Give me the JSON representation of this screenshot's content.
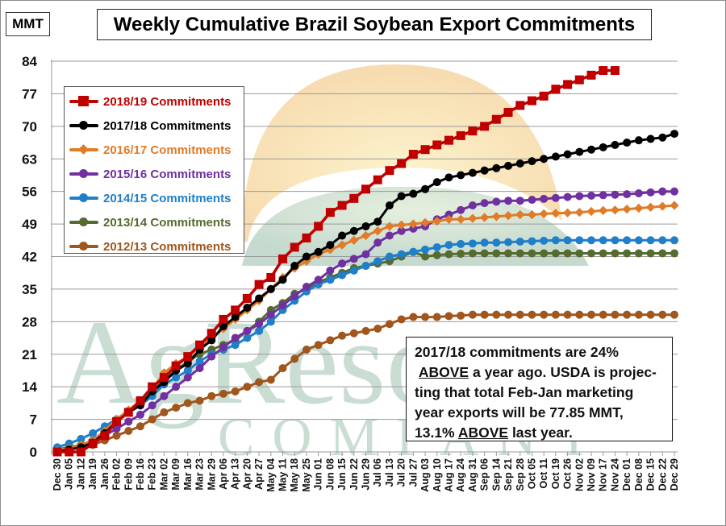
{
  "unit_label": "MMT",
  "title": "Weekly Cumulative Brazil Soybean Export Commitments",
  "note": {
    "line1": "2017/18 commitments are 24%",
    "line2_underlined": "ABOVE",
    "line2_rest": " a year ago. USDA is projec-",
    "line3": "ting that total Feb-Jan marketing",
    "line4": "year exports will be 77.85 MMT,",
    "line5_pre": "13.1% ",
    "line5_underlined": "ABOVE",
    "line5_post": " last year."
  },
  "watermark": {
    "line1": "AgResource",
    "line2": "COMPANY"
  },
  "legend": [
    {
      "label": "2018/19 Commitments",
      "color": "#C00000",
      "marker": "square"
    },
    {
      "label": "2017/18 Commitments",
      "color": "#000000",
      "marker": "circle"
    },
    {
      "label": "2016/17 Commitments",
      "color": "#E07B28",
      "marker": "diamond"
    },
    {
      "label": "2015/16 Commitments",
      "color": "#7030A0",
      "marker": "circle"
    },
    {
      "label": "2014/15 Commitments",
      "color": "#1F7FC8",
      "marker": "circle"
    },
    {
      "label": "2013/14 Commitments",
      "color": "#556B2F",
      "marker": "circle"
    },
    {
      "label": "2012/13 Commitments",
      "color": "#A0561C",
      "marker": "circle"
    }
  ],
  "chart_data": {
    "type": "line",
    "title": "Weekly Cumulative Brazil Soybean Export Commitments",
    "ylabel": "MMT",
    "xlabel": "",
    "ylim": [
      0,
      84
    ],
    "yticks": [
      0,
      7,
      14,
      21,
      28,
      35,
      42,
      49,
      56,
      63,
      70,
      77,
      84
    ],
    "grid": true,
    "legend_position": "upper-left",
    "categories": [
      "Dec 30",
      "Jan 05",
      "Jan 12",
      "Jan 19",
      "Jan 26",
      "Feb 02",
      "Feb 09",
      "Feb 16",
      "Feb 23",
      "Mar 02",
      "Mar 09",
      "Mar 16",
      "Mar 23",
      "Mar 29",
      "Apr 06",
      "Apr 13",
      "Apr 20",
      "Apr 27",
      "May 04",
      "May 11",
      "May 18",
      "May 25",
      "Jun 01",
      "Jun 08",
      "Jun 15",
      "Jun 22",
      "Jun 29",
      "Jul 06",
      "Jul 13",
      "Jul 20",
      "Jul 27",
      "Aug 03",
      "Aug 10",
      "Aug 17",
      "Aug 24",
      "Aug 31",
      "Sep 06",
      "Sep 14",
      "Sep 21",
      "Sep 28",
      "Oct 05",
      "Oct 11",
      "Oct 19",
      "Oct 26",
      "Nov 02",
      "Nov 09",
      "Nov 17",
      "Nov 24",
      "Dec 01",
      "Dec 08",
      "Dec 15",
      "Dec 22",
      "Dec 29"
    ],
    "series": [
      {
        "name": "2018/19 Commitments",
        "color": "#C00000",
        "values": [
          0,
          0,
          0,
          1.8,
          3.5,
          6.5,
          8.5,
          11,
          14,
          16,
          18.5,
          20.5,
          23,
          25.5,
          28.5,
          30.5,
          33,
          36,
          37.5,
          41.5,
          44,
          46,
          48.5,
          51.5,
          53,
          54.5,
          56.5,
          58.5,
          60.5,
          62,
          64,
          65,
          66,
          67,
          68,
          69,
          70,
          71.5,
          73,
          74.5,
          75.5,
          76.5,
          78,
          79,
          80,
          81,
          82,
          82
        ]
      },
      {
        "name": "2017/18 Commitments",
        "color": "#000000",
        "values": [
          0,
          0.5,
          1,
          2,
          4,
          6.5,
          8.5,
          10,
          13,
          15,
          17.5,
          19,
          22,
          24,
          27,
          29,
          31,
          33,
          35,
          37,
          40,
          42,
          43,
          44.5,
          46.5,
          47.5,
          48.5,
          49.5,
          53,
          55,
          55.5,
          56.5,
          58,
          59,
          59.5,
          60,
          60.5,
          61,
          61.5,
          62,
          62.5,
          63,
          63.5,
          64,
          64.5,
          65,
          65.5,
          66,
          66.5,
          67,
          67.3,
          67.6,
          68.4
        ]
      },
      {
        "name": "2016/17 Commitments",
        "color": "#E07B28",
        "values": [
          0.3,
          0.8,
          1.5,
          2.5,
          4.5,
          7,
          9,
          11,
          13.5,
          17,
          19,
          20.5,
          22.5,
          24.5,
          26.5,
          28.5,
          30.5,
          32.5,
          35,
          37.5,
          39.5,
          41,
          42.5,
          43.5,
          44.5,
          45.5,
          46.5,
          47.5,
          48.5,
          48.8,
          49,
          49.3,
          49.6,
          50,
          50,
          50.2,
          50.4,
          50.6,
          50.8,
          51,
          51,
          51.2,
          51.3,
          51.4,
          51.5,
          51.7,
          51.9,
          52,
          52.2,
          52.4,
          52.6,
          52.8,
          53
        ]
      },
      {
        "name": "2015/16 Commitments",
        "color": "#7030A0",
        "values": [
          0,
          0.5,
          1,
          2,
          3.5,
          5,
          6.5,
          8,
          10,
          12,
          14,
          16,
          18,
          20.5,
          22.5,
          24.5,
          26,
          27.5,
          29.5,
          31.5,
          33.5,
          35.5,
          37,
          39,
          40.5,
          41.5,
          42.5,
          45,
          46.5,
          47.5,
          48,
          48.5,
          50,
          51,
          52,
          53,
          53.5,
          53.8,
          54,
          54,
          54.2,
          54.4,
          54.6,
          54.8,
          55,
          55.1,
          55.2,
          55.3,
          55.4,
          55.6,
          55.8,
          56,
          56
        ]
      },
      {
        "name": "2014/15 Commitments",
        "color": "#1F7FC8",
        "values": [
          1,
          1.8,
          2.8,
          4,
          5.5,
          7,
          8.5,
          10,
          12,
          14.5,
          16,
          17.5,
          19.5,
          21,
          22,
          23,
          24.5,
          26,
          28,
          30.5,
          32.5,
          34.5,
          36,
          37,
          38,
          39,
          40,
          41,
          42,
          42.5,
          43,
          43.5,
          44,
          44.5,
          44.7,
          44.8,
          45,
          45,
          45.1,
          45.2,
          45.3,
          45.4,
          45.5,
          45.5,
          45.5,
          45.5,
          45.5,
          45.5,
          45.5,
          45.5,
          45.5,
          45.5,
          45.5
        ]
      },
      {
        "name": "2013/14 Commitments",
        "color": "#556B2F",
        "values": [
          0.5,
          1,
          1.5,
          2.5,
          4.5,
          6.5,
          8.5,
          10.5,
          13,
          15.5,
          17.5,
          19.5,
          21,
          22,
          23,
          24,
          26,
          28,
          30.5,
          32,
          34,
          35,
          36.5,
          37.5,
          38.5,
          39.5,
          40,
          40.5,
          41,
          42,
          43,
          42,
          42.3,
          42.5,
          42.6,
          42.7,
          42.7,
          42.7,
          42.7,
          42.7,
          42.7,
          42.7,
          42.7,
          42.7,
          42.7,
          42.7,
          42.7,
          42.7,
          42.7,
          42.7,
          42.7,
          42.7,
          42.7
        ]
      },
      {
        "name": "2012/13 Commitments",
        "color": "#A0561C",
        "values": [
          0,
          0.5,
          1,
          1.5,
          2.5,
          3.5,
          4.5,
          5.5,
          7,
          8.5,
          9.5,
          10.5,
          11,
          12,
          12.5,
          13,
          14,
          15,
          15.5,
          18,
          20,
          22,
          23,
          24,
          25,
          25.5,
          26,
          26.5,
          27.5,
          28.5,
          29,
          29,
          29,
          29.2,
          29.3,
          29.5,
          29.5,
          29.5,
          29.5,
          29.5,
          29.5,
          29.5,
          29.5,
          29.5,
          29.5,
          29.5,
          29.5,
          29.5,
          29.5,
          29.5,
          29.5,
          29.5,
          29.5
        ]
      }
    ]
  }
}
